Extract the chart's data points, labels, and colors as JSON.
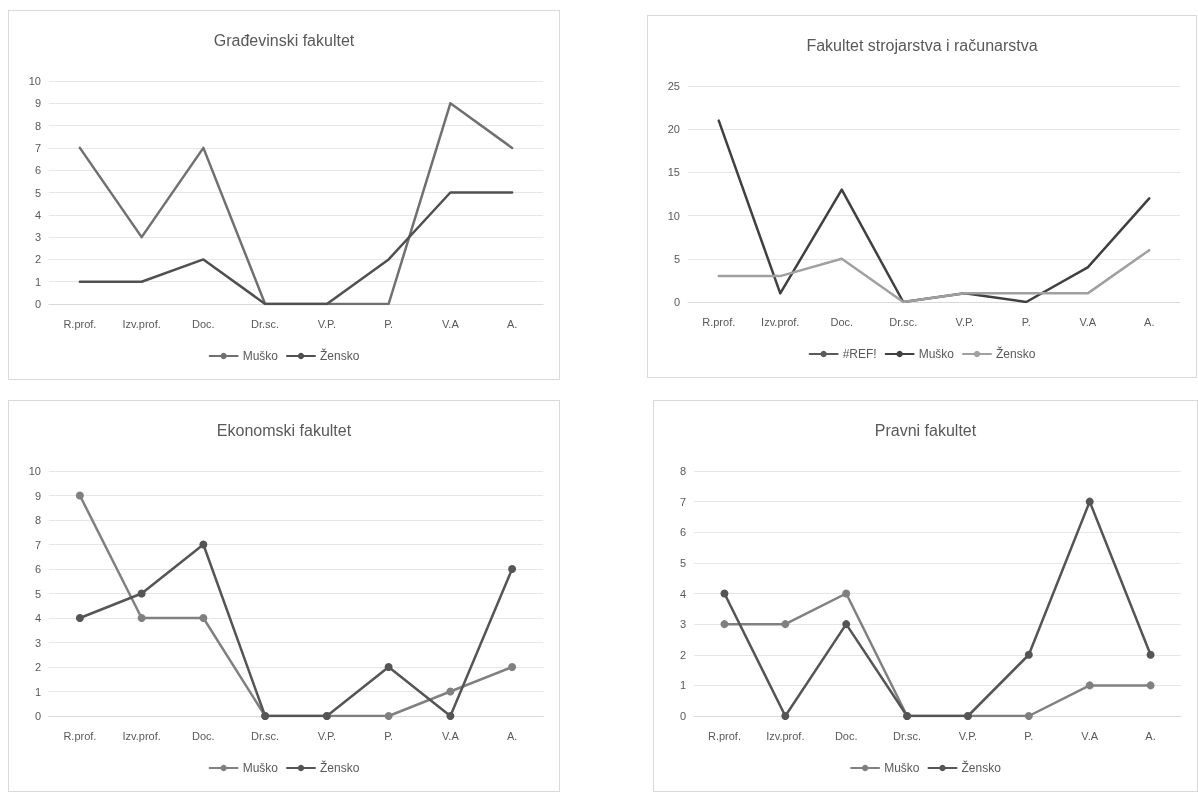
{
  "chart_data": [
    {
      "type": "line",
      "title": "Građevinski fakultet",
      "categories": [
        "R.prof.",
        "Izv.prof.",
        "Doc.",
        "Dr.sc.",
        "V.P.",
        "P.",
        "V.A",
        "A."
      ],
      "ylim": [
        0,
        10
      ],
      "yticks": [
        0,
        1,
        2,
        3,
        4,
        5,
        6,
        7,
        8,
        9,
        10
      ],
      "grid": "y",
      "legend": "bottom",
      "marker": "none",
      "series": [
        {
          "name": "Muško",
          "color": "#707070",
          "values": [
            7,
            3,
            7,
            0,
            0,
            0,
            9,
            7
          ]
        },
        {
          "name": "Žensko",
          "color": "#505050",
          "values": [
            1,
            1,
            2,
            0,
            0,
            2,
            5,
            5
          ]
        }
      ]
    },
    {
      "type": "line",
      "title": "Fakultet strojarstva i računarstva",
      "categories": [
        "R.prof.",
        "Izv.prof.",
        "Doc.",
        "Dr.sc.",
        "V.P.",
        "P.",
        "V.A",
        "A."
      ],
      "ylim": [
        0,
        25
      ],
      "yticks": [
        0,
        5,
        10,
        15,
        20,
        25
      ],
      "grid": "y",
      "legend": "bottom",
      "marker": "none",
      "series": [
        {
          "name": "#REF!",
          "color": "#5a5a5a",
          "values": [
            null,
            null,
            null,
            null,
            null,
            null,
            null,
            null
          ]
        },
        {
          "name": "Muško",
          "color": "#404040",
          "values": [
            21,
            1,
            13,
            0,
            1,
            0,
            4,
            12
          ]
        },
        {
          "name": "Žensko",
          "color": "#a0a0a0",
          "values": [
            3,
            3,
            5,
            0,
            1,
            1,
            1,
            6
          ]
        }
      ]
    },
    {
      "type": "line",
      "title": "Ekonomski fakultet",
      "categories": [
        "R.prof.",
        "Izv.prof.",
        "Doc.",
        "Dr.sc.",
        "V.P.",
        "P.",
        "V.A",
        "A."
      ],
      "ylim": [
        0,
        10
      ],
      "yticks": [
        0,
        1,
        2,
        3,
        4,
        5,
        6,
        7,
        8,
        9,
        10
      ],
      "grid": "y",
      "legend": "bottom",
      "marker": "circle",
      "series": [
        {
          "name": "Muško",
          "color": "#808080",
          "values": [
            9,
            4,
            4,
            0,
            0,
            0,
            1,
            2
          ]
        },
        {
          "name": "Žensko",
          "color": "#555555",
          "values": [
            4,
            5,
            7,
            0,
            0,
            2,
            0,
            6
          ]
        }
      ]
    },
    {
      "type": "line",
      "title": "Pravni fakultet",
      "categories": [
        "R.prof.",
        "Izv.prof.",
        "Doc.",
        "Dr.sc.",
        "V.P.",
        "P.",
        "V.A",
        "A."
      ],
      "ylim": [
        0,
        8
      ],
      "yticks": [
        0,
        1,
        2,
        3,
        4,
        5,
        6,
        7,
        8
      ],
      "grid": "y",
      "legend": "bottom",
      "marker": "circle",
      "series": [
        {
          "name": "Muško",
          "color": "#808080",
          "values": [
            3,
            3,
            4,
            0,
            0,
            0,
            1,
            1
          ]
        },
        {
          "name": "Žensko",
          "color": "#555555",
          "values": [
            4,
            0,
            3,
            0,
            0,
            2,
            7,
            2
          ]
        }
      ]
    }
  ]
}
